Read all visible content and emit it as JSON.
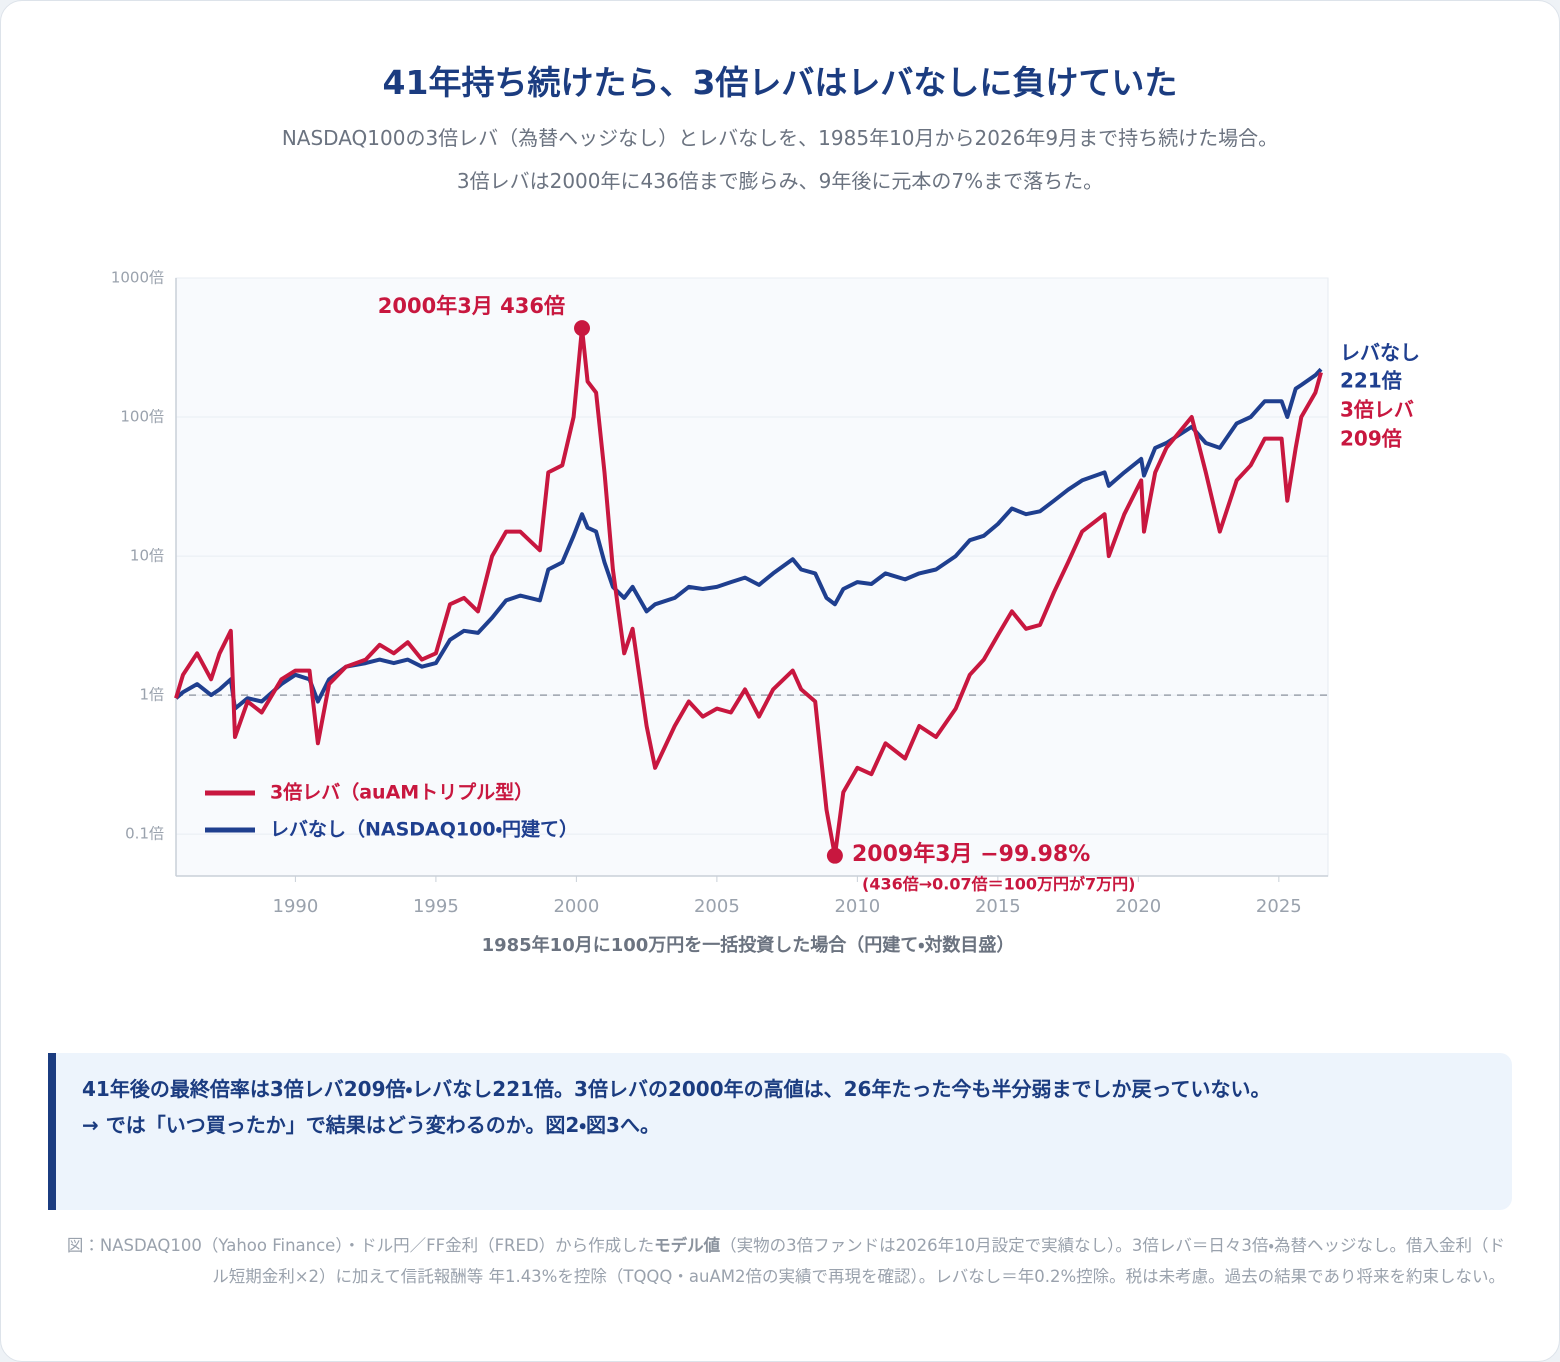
{
  "chart_data": {
    "type": "line",
    "title": "41年持ち続けたら、3倍レバはレバなしに負けていた",
    "subtitle": [
      "NASDAQ100の3倍レバ（為替ヘッジなし）とレバなしを、1985年10月から2026年9月まで持ち続けた場合。",
      "3倍レバは2000年に436倍まで膨らみ、9年後に元本の7%まで落ちた。"
    ],
    "x_label": "1985年10月に100万円を一括投資した場合（円建て・対数目盛）",
    "log_y": true,
    "grid": true,
    "legend": "lower-left",
    "reference_line": 1,
    "xlim": [
      1985.75,
      2026.75
    ],
    "xticks": [
      1990,
      1995,
      2000,
      2005,
      2010,
      2015,
      2020,
      2025
    ],
    "ylim": [
      0.05,
      1000
    ],
    "yticks": [
      {
        "value": 0.1,
        "label": "0.1倍"
      },
      {
        "value": 1,
        "label": "1倍"
      },
      {
        "value": 10,
        "label": "10倍"
      },
      {
        "value": 100,
        "label": "100倍"
      },
      {
        "value": 1000,
        "label": "1000倍"
      }
    ],
    "x": [
      1985.75,
      1986.0,
      1986.5,
      1987.0,
      1987.3,
      1987.7,
      1987.85,
      1988.3,
      1988.8,
      1989.5,
      1990.0,
      1990.5,
      1990.8,
      1991.2,
      1991.8,
      1992.5,
      1993.0,
      1993.5,
      1994.0,
      1994.5,
      1995.0,
      1995.5,
      1996.0,
      1996.5,
      1997.0,
      1997.5,
      1998.0,
      1998.7,
      1999.0,
      1999.5,
      1999.9,
      2000.2,
      2000.4,
      2000.7,
      2001.0,
      2001.3,
      2001.7,
      2002.0,
      2002.5,
      2002.8,
      2003.5,
      2004.0,
      2004.5,
      2005.0,
      2005.5,
      2006.0,
      2006.5,
      2007.0,
      2007.7,
      2008.0,
      2008.5,
      2008.9,
      2009.2,
      2009.5,
      2010.0,
      2010.5,
      2011.0,
      2011.7,
      2012.2,
      2012.8,
      2013.5,
      2014.0,
      2014.5,
      2015.0,
      2015.5,
      2016.0,
      2016.5,
      2017.0,
      2017.5,
      2018.0,
      2018.8,
      2018.95,
      2019.5,
      2020.1,
      2020.2,
      2020.6,
      2021.0,
      2021.9,
      2022.4,
      2022.9,
      2023.5,
      2024.0,
      2024.5,
      2025.1,
      2025.3,
      2025.6,
      2025.8,
      2026.3,
      2026.5
    ],
    "series": [
      {
        "name": "3倍レバ（auAMトリプル型）",
        "color": "#c8173f",
        "values": [
          0.95,
          1.4,
          2.0,
          1.3,
          2.0,
          2.9,
          0.5,
          0.9,
          0.75,
          1.3,
          1.5,
          1.5,
          0.45,
          1.2,
          1.6,
          1.8,
          2.3,
          2.0,
          2.4,
          1.8,
          2.0,
          4.5,
          5.0,
          4.0,
          10,
          15,
          15,
          11,
          40,
          45,
          100,
          436,
          180,
          150,
          40,
          8,
          2,
          3,
          0.6,
          0.3,
          0.6,
          0.9,
          0.7,
          0.8,
          0.75,
          1.1,
          0.7,
          1.1,
          1.5,
          1.1,
          0.9,
          0.15,
          0.07,
          0.2,
          0.3,
          0.27,
          0.45,
          0.35,
          0.6,
          0.5,
          0.8,
          1.4,
          1.8,
          2.7,
          4.0,
          3.0,
          3.2,
          5.5,
          9,
          15,
          20,
          10,
          20,
          35,
          15,
          40,
          60,
          100,
          40,
          15,
          35,
          45,
          70,
          70,
          25,
          60,
          100,
          150,
          209
        ]
      },
      {
        "name": "レバなし（NASDAQ100・円建て）",
        "color": "#1f3f8f",
        "values": [
          0.95,
          1.05,
          1.2,
          1.0,
          1.1,
          1.3,
          0.8,
          0.95,
          0.9,
          1.2,
          1.4,
          1.3,
          0.9,
          1.3,
          1.6,
          1.7,
          1.8,
          1.7,
          1.8,
          1.6,
          1.7,
          2.5,
          2.9,
          2.8,
          3.6,
          4.8,
          5.2,
          4.8,
          8,
          9,
          14,
          20,
          16,
          15,
          9,
          6,
          5,
          6,
          4,
          4.5,
          5,
          6,
          5.8,
          6,
          6.5,
          7,
          6.2,
          7.5,
          9.5,
          8,
          7.5,
          5,
          4.5,
          5.8,
          6.5,
          6.3,
          7.5,
          6.8,
          7.5,
          8,
          10,
          13,
          14,
          17,
          22,
          20,
          21,
          25,
          30,
          35,
          40,
          32,
          40,
          50,
          38,
          60,
          65,
          85,
          65,
          60,
          90,
          100,
          130,
          130,
          100,
          160,
          170,
          200,
          221
        ]
      }
    ],
    "annotations": [
      {
        "text": "2000年3月 436倍"
      },
      {
        "text": "2009年3月 −99.98%"
      },
      {
        "text": "(436倍→0.07倍＝100万円が7万円)"
      },
      {
        "text": "レバなし"
      },
      {
        "text": "221倍"
      },
      {
        "text": "3倍レバ"
      },
      {
        "text": "209倍"
      }
    ]
  },
  "callout": [
    "41年後の最終倍率は3倍レバ209倍・レバなし221倍。3倍レバの2000年の高値は、26年たった今も半分弱までしか戻っていない。",
    "→ では「いつ買ったか」で結果はどう変わるのか。図2・図3へ。"
  ],
  "footnote": [
    "図：NASDAQ100（Yahoo Finance）・ドル円／FF金利（FRED）から作成した",
    "モデル値",
    "（実物の3倍ファンドは2026年10月設定で実績なし）。3倍レバ＝日々3倍・為替ヘッジなし。借入金利（ドル短期金利×2）に加えて信託報酬等 年1.43%を控除（TQQQ・auAM2倍の実績で再現を確認）。レバなし＝年0.2%控除。税は未考慮。過去の結果であり将来を約束しない。"
  ]
}
